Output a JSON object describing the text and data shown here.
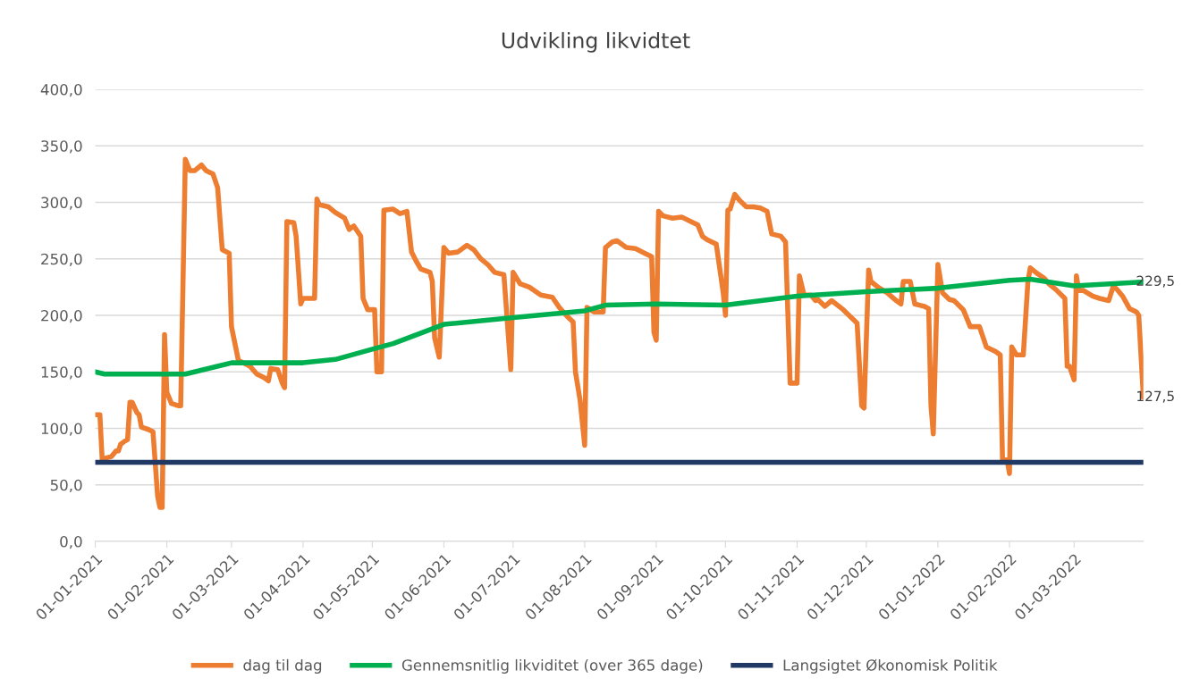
{
  "chart_data": {
    "type": "line",
    "title": "Udvikling likvidtet",
    "xlim": [
      "2021-01-01",
      "2022-03-31"
    ],
    "xticks": [
      {
        "value": "2021-01-01",
        "label": "01-01-2021"
      },
      {
        "value": "2021-02-01",
        "label": "01-02-2021"
      },
      {
        "value": "2021-03-01",
        "label": "01-03-2021"
      },
      {
        "value": "2021-04-01",
        "label": "01-04-2021"
      },
      {
        "value": "2021-05-01",
        "label": "01-05-2021"
      },
      {
        "value": "2021-06-01",
        "label": "01-06-2021"
      },
      {
        "value": "2021-07-01",
        "label": "01-07-2021"
      },
      {
        "value": "2021-08-01",
        "label": "01-08-2021"
      },
      {
        "value": "2021-09-01",
        "label": "01-09-2021"
      },
      {
        "value": "2021-10-01",
        "label": "01-10-2021"
      },
      {
        "value": "2021-11-01",
        "label": "01-11-2021"
      },
      {
        "value": "2021-12-01",
        "label": "01-12-2021"
      },
      {
        "value": "2022-01-01",
        "label": "01-01-2022"
      },
      {
        "value": "2022-02-01",
        "label": "01-02-2022"
      },
      {
        "value": "2022-03-01",
        "label": "01-03-2022"
      }
    ],
    "ylim": [
      0,
      400
    ],
    "yticks": [
      {
        "value": 0,
        "label": "0,0"
      },
      {
        "value": 50,
        "label": "50,0"
      },
      {
        "value": 100,
        "label": "100,0"
      },
      {
        "value": 150,
        "label": "150,0"
      },
      {
        "value": 200,
        "label": "200,0"
      },
      {
        "value": 250,
        "label": "250,0"
      },
      {
        "value": 300,
        "label": "300,0"
      },
      {
        "value": 350,
        "label": "350,0"
      },
      {
        "value": 400,
        "label": "400,0"
      }
    ],
    "grid": "y",
    "legend": "bottom",
    "marker": "none",
    "line_style": "solid",
    "series": [
      {
        "name": "dag til dag",
        "color": "#ed7d31",
        "x": [
          "2021-01-01",
          "2021-01-03",
          "2021-01-04",
          "2021-01-06",
          "2021-01-08",
          "2021-01-10",
          "2021-01-11",
          "2021-01-12",
          "2021-01-14",
          "2021-01-15",
          "2021-01-16",
          "2021-01-17",
          "2021-01-19",
          "2021-01-20",
          "2021-01-21",
          "2021-01-24",
          "2021-01-26",
          "2021-01-28",
          "2021-01-29",
          "2021-01-30",
          "2021-01-31",
          "2021-02-01",
          "2021-02-03",
          "2021-02-06",
          "2021-02-07",
          "2021-02-09",
          "2021-02-11",
          "2021-02-13",
          "2021-02-16",
          "2021-02-18",
          "2021-02-21",
          "2021-02-23",
          "2021-02-25",
          "2021-02-28",
          "2021-03-01",
          "2021-03-04",
          "2021-03-07",
          "2021-03-09",
          "2021-03-12",
          "2021-03-15",
          "2021-03-17",
          "2021-03-18",
          "2021-03-21",
          "2021-03-23",
          "2021-03-24",
          "2021-03-25",
          "2021-03-28",
          "2021-03-29",
          "2021-03-31",
          "2021-04-01",
          "2021-04-06",
          "2021-04-07",
          "2021-04-08",
          "2021-04-12",
          "2021-04-15",
          "2021-04-19",
          "2021-04-21",
          "2021-04-23",
          "2021-04-26",
          "2021-04-27",
          "2021-04-29",
          "2021-05-02",
          "2021-05-03",
          "2021-05-05",
          "2021-05-06",
          "2021-05-10",
          "2021-05-13",
          "2021-05-16",
          "2021-05-18",
          "2021-05-20",
          "2021-05-22",
          "2021-05-26",
          "2021-05-27",
          "2021-05-28",
          "2021-05-30",
          "2021-06-01",
          "2021-06-03",
          "2021-06-07",
          "2021-06-11",
          "2021-06-14",
          "2021-06-17",
          "2021-06-20",
          "2021-06-23",
          "2021-06-27",
          "2021-06-30",
          "2021-07-01",
          "2021-07-04",
          "2021-07-08",
          "2021-07-13",
          "2021-07-18",
          "2021-07-21",
          "2021-07-24",
          "2021-07-27",
          "2021-07-28",
          "2021-07-30",
          "2021-08-01",
          "2021-08-02",
          "2021-08-05",
          "2021-08-09",
          "2021-08-10",
          "2021-08-13",
          "2021-08-15",
          "2021-08-19",
          "2021-08-23",
          "2021-08-27",
          "2021-08-30",
          "2021-08-31",
          "2021-09-01",
          "2021-09-02",
          "2021-09-04",
          "2021-09-08",
          "2021-09-12",
          "2021-09-16",
          "2021-09-19",
          "2021-09-21",
          "2021-09-23",
          "2021-09-27",
          "2021-09-30",
          "2021-10-01",
          "2021-10-02",
          "2021-10-03",
          "2021-10-05",
          "2021-10-07",
          "2021-10-10",
          "2021-10-13",
          "2021-10-16",
          "2021-10-19",
          "2021-10-21",
          "2021-10-25",
          "2021-10-27",
          "2021-10-29",
          "2021-11-01",
          "2021-11-02",
          "2021-11-04",
          "2021-11-07",
          "2021-11-09",
          "2021-11-10",
          "2021-11-13",
          "2021-11-16",
          "2021-11-21",
          "2021-11-25",
          "2021-11-27",
          "2021-11-29",
          "2021-11-30",
          "2021-12-02",
          "2021-12-03",
          "2021-12-06",
          "2021-12-10",
          "2021-12-14",
          "2021-12-16",
          "2021-12-17",
          "2021-12-20",
          "2021-12-22",
          "2021-12-26",
          "2021-12-28",
          "2021-12-29",
          "2021-12-30",
          "2022-01-01",
          "2022-01-03",
          "2022-01-06",
          "2022-01-08",
          "2022-01-12",
          "2022-01-15",
          "2022-01-19",
          "2022-01-22",
          "2022-01-26",
          "2022-01-28",
          "2022-01-29",
          "2022-01-31",
          "2022-02-01",
          "2022-02-02",
          "2022-02-04",
          "2022-02-07",
          "2022-02-09",
          "2022-02-10",
          "2022-02-13",
          "2022-02-16",
          "2022-02-18",
          "2022-02-21",
          "2022-02-25",
          "2022-02-26",
          "2022-02-27",
          "2022-03-01",
          "2022-03-02",
          "2022-03-03",
          "2022-03-05",
          "2022-03-09",
          "2022-03-12",
          "2022-03-16",
          "2022-03-18",
          "2022-03-20",
          "2022-03-22",
          "2022-03-25",
          "2022-03-28",
          "2022-03-29",
          "2022-03-31"
        ],
        "values": [
          112,
          112,
          72,
          74,
          75,
          80,
          80,
          86,
          89,
          90,
          123,
          123,
          114,
          112,
          101,
          99,
          97,
          40,
          30,
          30,
          183,
          132,
          122,
          120,
          120,
          338,
          328,
          328,
          333,
          328,
          325,
          313,
          258,
          255,
          190,
          160,
          157,
          155,
          148,
          145,
          142,
          153,
          152,
          140,
          136,
          283,
          282,
          270,
          210,
          215,
          215,
          303,
          298,
          296,
          291,
          286,
          276,
          279,
          270,
          215,
          205,
          205,
          150,
          150,
          293,
          294,
          290,
          292,
          256,
          248,
          241,
          238,
          230,
          180,
          163,
          260,
          255,
          256,
          262,
          258,
          250,
          245,
          238,
          236,
          152,
          238,
          228,
          225,
          218,
          216,
          207,
          200,
          194,
          150,
          125,
          85,
          207,
          203,
          203,
          260,
          265,
          266,
          260,
          259,
          255,
          252,
          185,
          178,
          292,
          288,
          286,
          287,
          283,
          280,
          270,
          267,
          263,
          220,
          200,
          293,
          294,
          307,
          302,
          296,
          296,
          295,
          292,
          272,
          270,
          265,
          140,
          140,
          235,
          218,
          218,
          213,
          214,
          208,
          213,
          205,
          197,
          193,
          120,
          118,
          240,
          230,
          225,
          220,
          213,
          210,
          230,
          230,
          210,
          208,
          206,
          120,
          95,
          245,
          220,
          214,
          213,
          205,
          190,
          190,
          172,
          168,
          165,
          72,
          72,
          60,
          172,
          165,
          165,
          230,
          242,
          237,
          233,
          228,
          223,
          215,
          155,
          155,
          143,
          235,
          222,
          222,
          217,
          215,
          213,
          226,
          222,
          217,
          206,
          203,
          200,
          127.5
        ]
      },
      {
        "name": "Gennemsnitlig likviditet (over 365 dage)",
        "color": "#00b050",
        "x": [
          "2021-01-01",
          "2021-01-05",
          "2021-02-09",
          "2021-03-01",
          "2021-04-01",
          "2021-04-15",
          "2021-05-01",
          "2021-05-10",
          "2021-06-01",
          "2021-07-01",
          "2021-08-01",
          "2021-08-10",
          "2021-09-01",
          "2021-10-01",
          "2021-11-01",
          "2021-12-01",
          "2022-01-01",
          "2022-02-01",
          "2022-02-10",
          "2022-03-01",
          "2022-03-31"
        ],
        "values": [
          150,
          148,
          148,
          158,
          158,
          161,
          170,
          175,
          192,
          198,
          204,
          209,
          210,
          209,
          217,
          221,
          224,
          231,
          232,
          226,
          229.5
        ]
      },
      {
        "name": "Langsigtet Økonomisk Politik",
        "color": "#1f3864",
        "x": [
          "2021-01-01",
          "2022-03-31"
        ],
        "values": [
          70,
          70
        ]
      }
    ],
    "annotations": [
      {
        "text": "229,5",
        "x": "2022-03-31",
        "y": 229.5
      },
      {
        "text": "127,5",
        "x": "2022-03-31",
        "y": 127.5
      }
    ]
  }
}
